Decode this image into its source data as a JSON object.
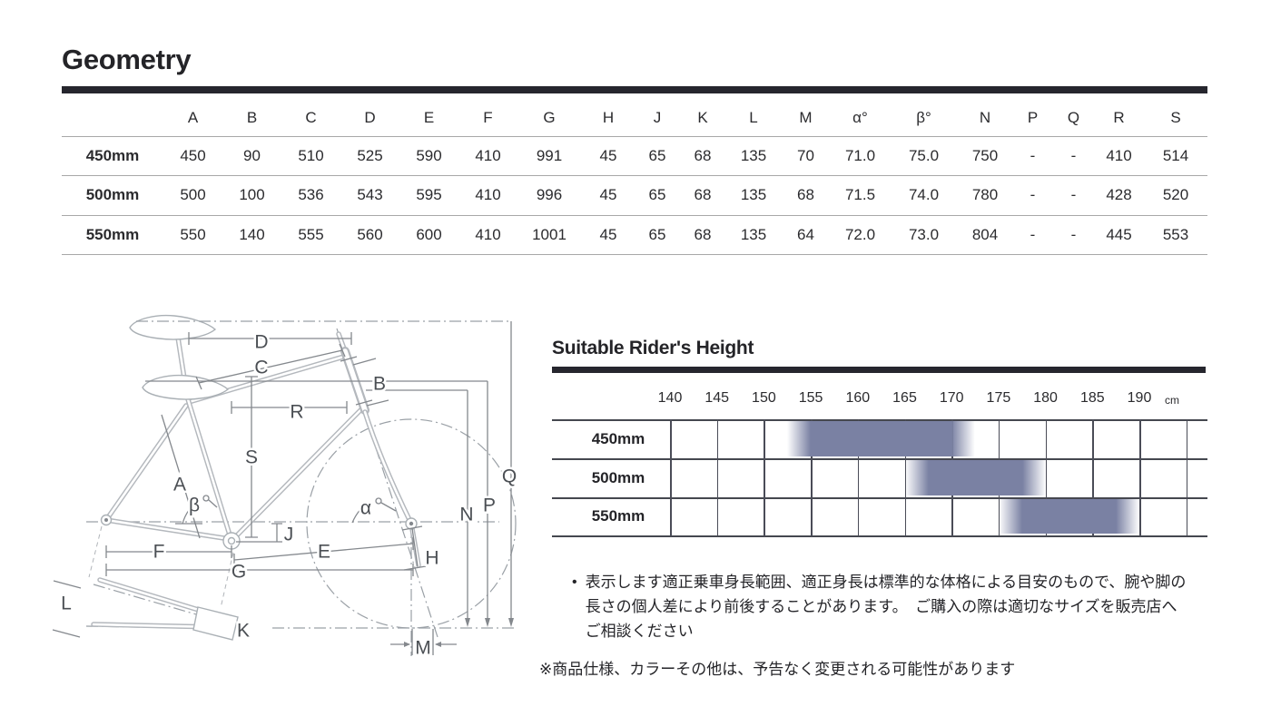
{
  "colors": {
    "heading_bar": "#26262e",
    "chart_grid": "#45474f",
    "chart_highlight": "#7a81a3",
    "chart_highlight_rgb": "122,129,163"
  },
  "geometry_section": {
    "title": "Geometry",
    "columns": [
      "A",
      "B",
      "C",
      "D",
      "E",
      "F",
      "G",
      "H",
      "J",
      "K",
      "L",
      "M",
      "α°",
      "β°",
      "N",
      "P",
      "Q",
      "R",
      "S"
    ],
    "rows": [
      {
        "label": "450mm",
        "values": [
          "450",
          "90",
          "510",
          "525",
          "590",
          "410",
          "991",
          "45",
          "65",
          "68",
          "135",
          "70",
          "71.0",
          "75.0",
          "750",
          "-",
          "-",
          "410",
          "514"
        ]
      },
      {
        "label": "500mm",
        "values": [
          "500",
          "100",
          "536",
          "543",
          "595",
          "410",
          "996",
          "45",
          "65",
          "68",
          "135",
          "68",
          "71.5",
          "74.0",
          "780",
          "-",
          "-",
          "428",
          "520"
        ]
      },
      {
        "label": "550mm",
        "values": [
          "550",
          "140",
          "555",
          "560",
          "600",
          "410",
          "1001",
          "45",
          "65",
          "68",
          "135",
          "64",
          "72.0",
          "73.0",
          "804",
          "-",
          "-",
          "445",
          "553"
        ]
      }
    ]
  },
  "diagram": {
    "labels": [
      "D",
      "C",
      "B",
      "R",
      "S",
      "A",
      "β",
      "α",
      "J",
      "F",
      "E",
      "G",
      "H",
      "N",
      "P",
      "Q",
      "L",
      "K",
      "M"
    ]
  },
  "height_chart": {
    "title": "Suitable Rider's Height",
    "unit_label": "cm",
    "tick_labels": [
      "140",
      "145",
      "150",
      "155",
      "160",
      "165",
      "170",
      "175",
      "180",
      "185",
      "190"
    ],
    "cm_per_cell": 5,
    "rows": [
      {
        "label": "450mm",
        "range_cm": {
          "fade_start": 152.5,
          "solid_start": 155,
          "solid_end": 170,
          "fade_end": 172.5
        }
      },
      {
        "label": "500mm",
        "range_cm": {
          "fade_start": 165,
          "solid_start": 167.5,
          "solid_end": 177.5,
          "fade_end": 180
        }
      },
      {
        "label": "550mm",
        "range_cm": {
          "fade_start": 175,
          "solid_start": 177.5,
          "solid_end": 187.5,
          "fade_end": 190
        }
      }
    ]
  },
  "notes": {
    "bullet_glyph": "•",
    "fit_note": "表示します適正乗車身長範囲、適正身長は標準的な体格による目安のもので、腕や脚の長さの個人差により前後することがあります。　ご購入の際は適切なサイズを販売店へご相談ください",
    "disclaimer_note": "※商品仕様、カラーその他は、予告なく変更される可能性があります"
  }
}
